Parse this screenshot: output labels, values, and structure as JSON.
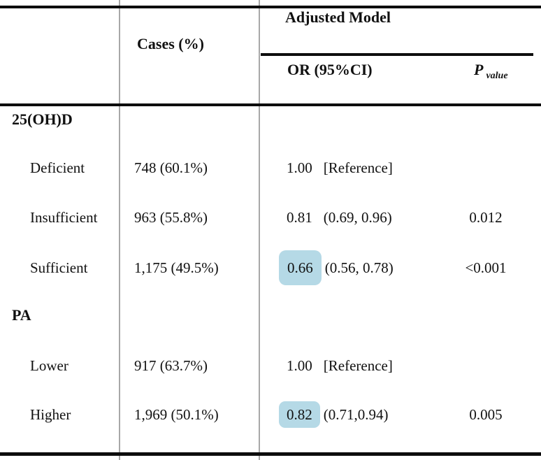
{
  "table": {
    "header": {
      "cases": "Cases (%)",
      "adjusted_model": "Adjusted Model",
      "or_ci": "OR (95%CI)",
      "p": "P",
      "p_sub": "value"
    },
    "highlight_color": "#b5d9e6",
    "rows": [
      {
        "label": "25(OH)D",
        "type": "section"
      },
      {
        "label": "Deficient",
        "cases": "748 (60.1%)",
        "or_value": "1.00",
        "or_rest": "[Reference]",
        "p": ""
      },
      {
        "label": "Insufficient",
        "cases": "963 (55.8%)",
        "or_value": "0.81",
        "or_rest": "(0.69, 0.96)",
        "p": "0.012"
      },
      {
        "label": "Sufficient",
        "cases": "1,175 (49.5%)",
        "or_value": "0.66",
        "or_rest": "(0.56, 0.78)",
        "p": "<0.001",
        "or_highlight": true
      },
      {
        "label": "PA",
        "type": "section"
      },
      {
        "label": "Lower",
        "cases": "917 (63.7%)",
        "or_value": "1.00",
        "or_rest": "[Reference]",
        "p": ""
      },
      {
        "label": "Higher",
        "cases": "1,969 (50.1%)",
        "or_value": "0.82",
        "or_rest": "(0.71,0.94)",
        "p": "0.005",
        "or_highlight": true
      }
    ]
  }
}
